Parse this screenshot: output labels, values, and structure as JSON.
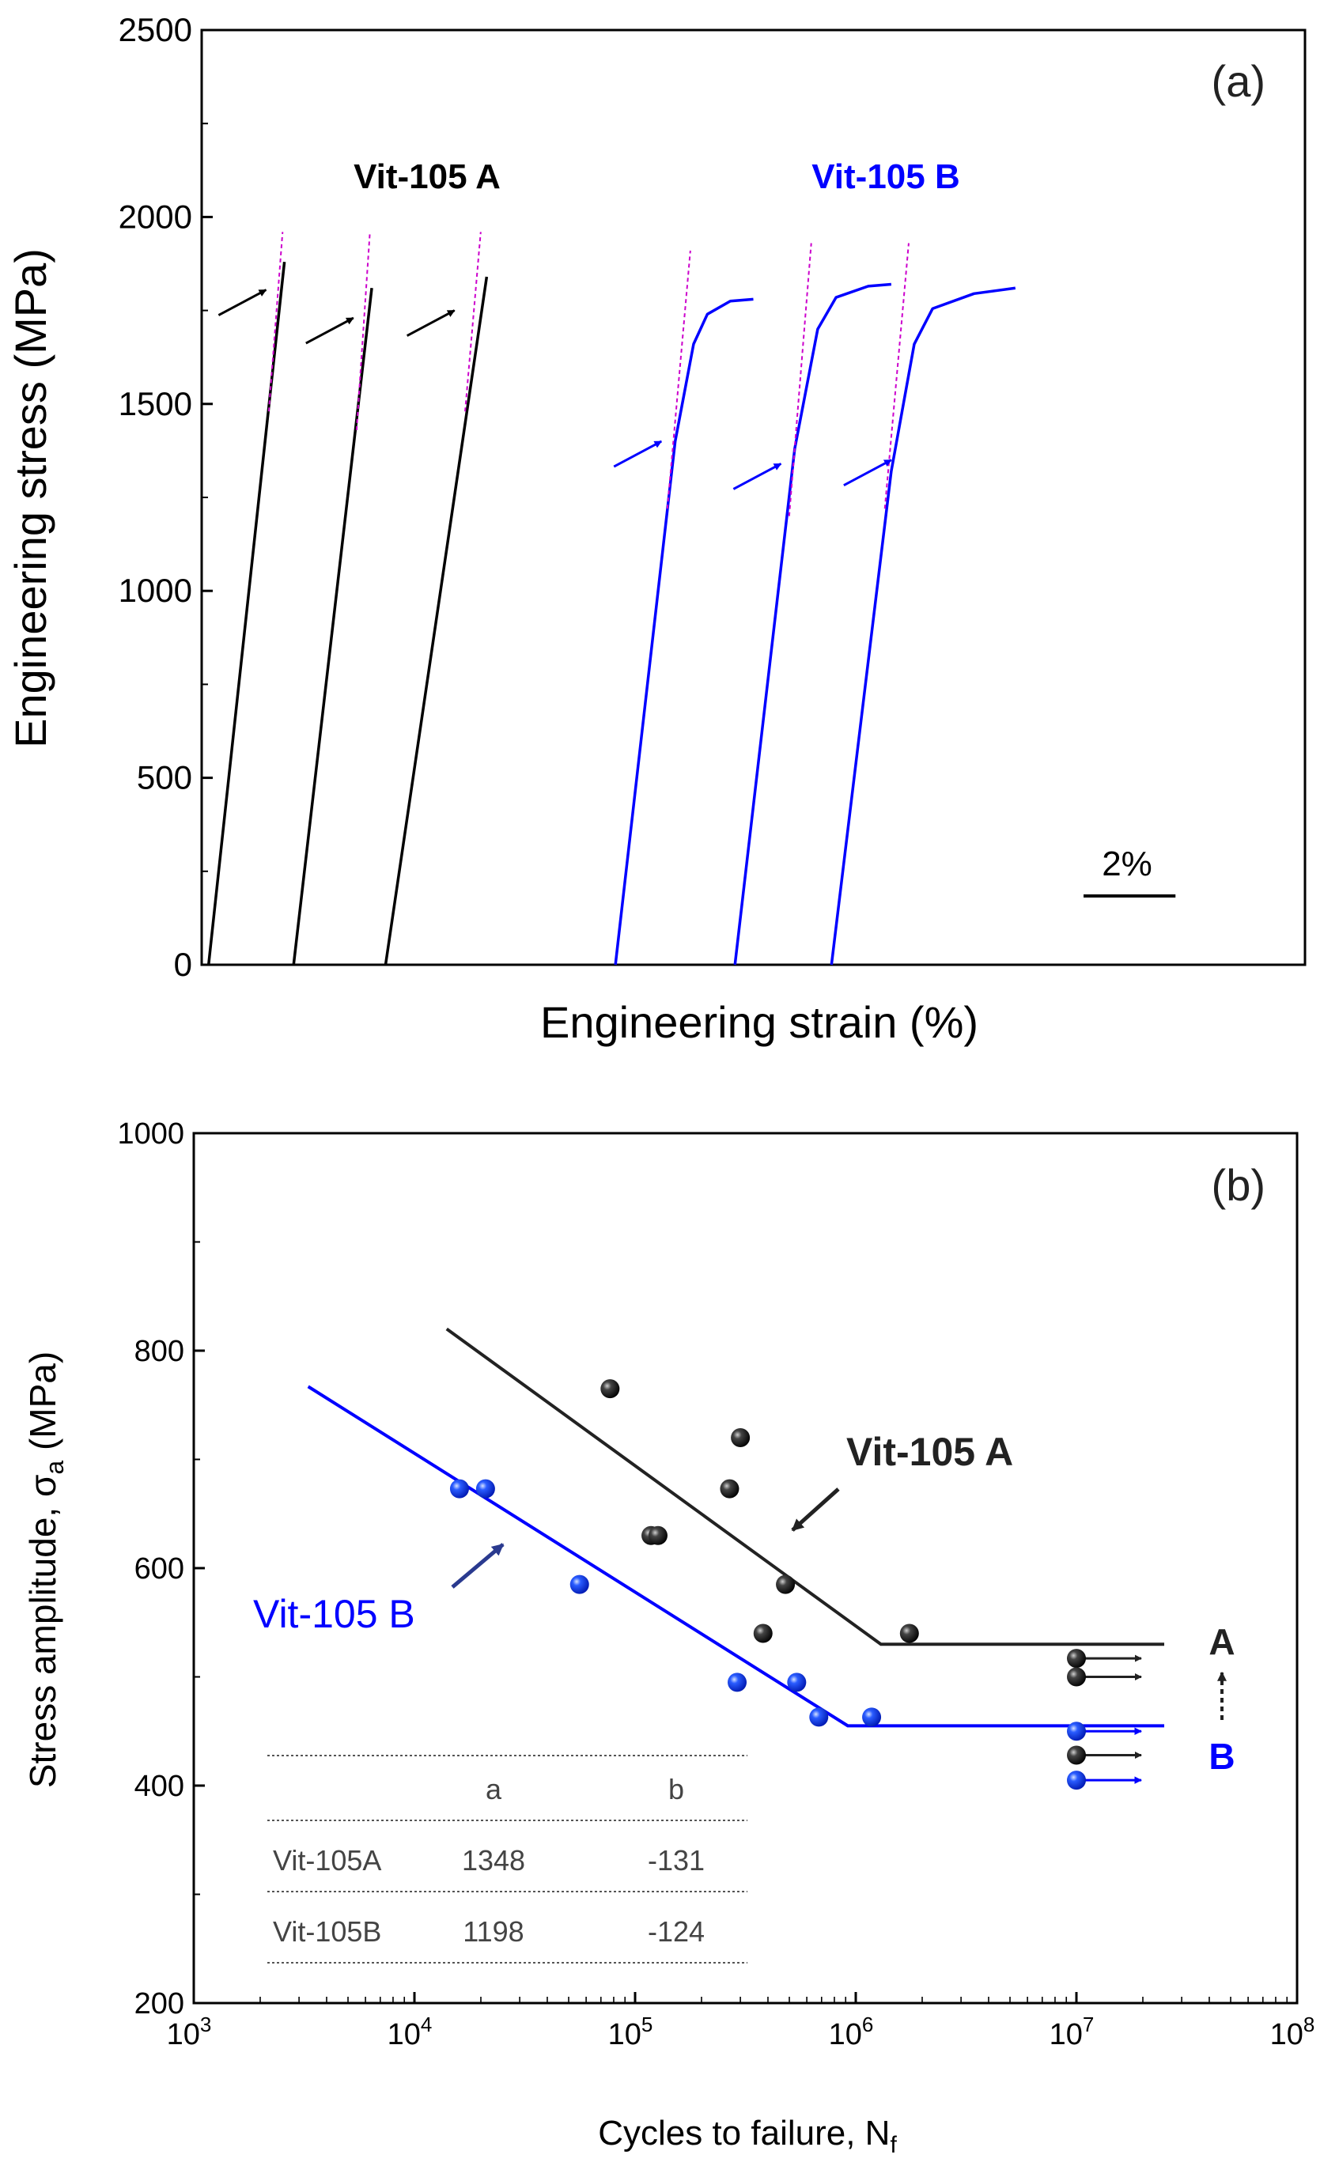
{
  "chart_data": [
    {
      "panel": "(a)",
      "type": "line",
      "xlabel": "Engineering strain (%)",
      "ylabel": "Engineering stress (MPa)",
      "ylim": [
        0,
        2500
      ],
      "yticks": [
        0,
        500,
        1000,
        1500,
        2000,
        2500
      ],
      "x_unit": "strain %, curves offset horizontally",
      "xlim": [
        0,
        24
      ],
      "scale_bar": {
        "label": "2%",
        "length": 2
      },
      "groups": [
        {
          "label": "Vit-105 A",
          "color": "#000000"
        },
        {
          "label": "Vit-105 B",
          "color": "#0000ff"
        }
      ],
      "series": [
        {
          "group": "A",
          "color": "#000000",
          "points": [
            [
              0.15,
              0
            ],
            [
              1.8,
              1880
            ]
          ],
          "elastic_fit": [
            [
              1.46,
              1480
            ],
            [
              1.76,
              1960
            ]
          ],
          "arrow_at": [
            1.4,
            1805
          ]
        },
        {
          "group": "A",
          "color": "#000000",
          "points": [
            [
              2.0,
              0
            ],
            [
              3.7,
              1810
            ]
          ],
          "elastic_fit": [
            [
              3.37,
              1430
            ],
            [
              3.66,
              1960
            ]
          ],
          "arrow_at": [
            3.3,
            1730
          ]
        },
        {
          "group": "A",
          "color": "#000000",
          "points": [
            [
              4.0,
              0
            ],
            [
              6.2,
              1840
            ]
          ],
          "elastic_fit": [
            [
              5.73,
              1480
            ],
            [
              6.07,
              1960
            ]
          ],
          "arrow_at": [
            5.5,
            1750
          ]
        },
        {
          "group": "B",
          "color": "#0000ff",
          "points": [
            [
              9.0,
              0
            ],
            [
              10.3,
              1400
            ],
            [
              10.7,
              1660
            ],
            [
              11.0,
              1740
            ],
            [
              11.5,
              1775
            ],
            [
              12.0,
              1780
            ]
          ],
          "elastic_fit": [
            [
              10.13,
              1220
            ],
            [
              10.63,
              1910
            ]
          ],
          "arrow_at": [
            10.0,
            1400
          ]
        },
        {
          "group": "B",
          "color": "#0000ff",
          "points": [
            [
              11.6,
              0
            ],
            [
              12.9,
              1380
            ],
            [
              13.4,
              1700
            ],
            [
              13.8,
              1785
            ],
            [
              14.5,
              1815
            ],
            [
              15.0,
              1820
            ]
          ],
          "elastic_fit": [
            [
              12.78,
              1200
            ],
            [
              13.26,
              1930
            ]
          ],
          "arrow_at": [
            12.6,
            1340
          ]
        },
        {
          "group": "B",
          "color": "#0000ff",
          "points": [
            [
              13.7,
              0
            ],
            [
              15.0,
              1320
            ],
            [
              15.5,
              1660
            ],
            [
              15.9,
              1755
            ],
            [
              16.8,
              1795
            ],
            [
              17.7,
              1810
            ]
          ],
          "elastic_fit": [
            [
              14.86,
              1220
            ],
            [
              15.38,
              1930
            ]
          ],
          "arrow_at": [
            15.0,
            1350
          ]
        }
      ]
    },
    {
      "panel": "(b)",
      "type": "scatter",
      "xlabel": "Cycles to failure, N",
      "xlabel_sub": "f",
      "ylabel": "Stress amplitude, σ",
      "ylabel_sub": "a",
      "ylabel_unit": " (MPa)",
      "xscale": "log",
      "xlim": [
        1000,
        100000000
      ],
      "ylim": [
        200,
        1000
      ],
      "yticks": [
        200,
        400,
        600,
        800,
        1000
      ],
      "xtick_base": "10",
      "xtick_exponents": [
        "3",
        "4",
        "5",
        "6",
        "7",
        "8"
      ],
      "series": [
        {
          "name": "Vit-105 A",
          "color": "#000000",
          "points": [
            [
              77000,
              765
            ],
            [
              118000,
              630
            ],
            [
              127000,
              630
            ],
            [
              268000,
              673
            ],
            [
              300000,
              720
            ],
            [
              380000,
              540
            ],
            [
              480000,
              585
            ],
            [
              1750000,
              540
            ]
          ],
          "runouts": [
            [
              10000000,
              517
            ],
            [
              10000000,
              500
            ],
            [
              10000000,
              428
            ]
          ],
          "fit": [
            [
              14000,
              820
            ],
            [
              1300000,
              530
            ],
            [
              25000000,
              530
            ]
          ]
        },
        {
          "name": "Vit-105 B",
          "color": "#0000ff",
          "points": [
            [
              16000,
              673
            ],
            [
              21000,
              673
            ],
            [
              56000,
              585
            ],
            [
              290000,
              495
            ],
            [
              540000,
              495
            ],
            [
              680000,
              463
            ],
            [
              1180000,
              463
            ]
          ],
          "runouts": [
            [
              10000000,
              450
            ],
            [
              10000000,
              405
            ]
          ],
          "fit": [
            [
              3300,
              767
            ],
            [
              920000,
              455
            ],
            [
              25000000,
              455
            ]
          ]
        }
      ],
      "annotations": {
        "label_a": "Vit-105 A",
        "label_b": "Vit-105 B",
        "end_a": "A",
        "end_b": "B"
      },
      "table": {
        "columns": [
          "",
          "a",
          "b"
        ],
        "rows": [
          [
            "Vit-105A",
            "1348",
            "-131"
          ],
          [
            "Vit-105B",
            "1198",
            "-124"
          ]
        ]
      }
    }
  ]
}
